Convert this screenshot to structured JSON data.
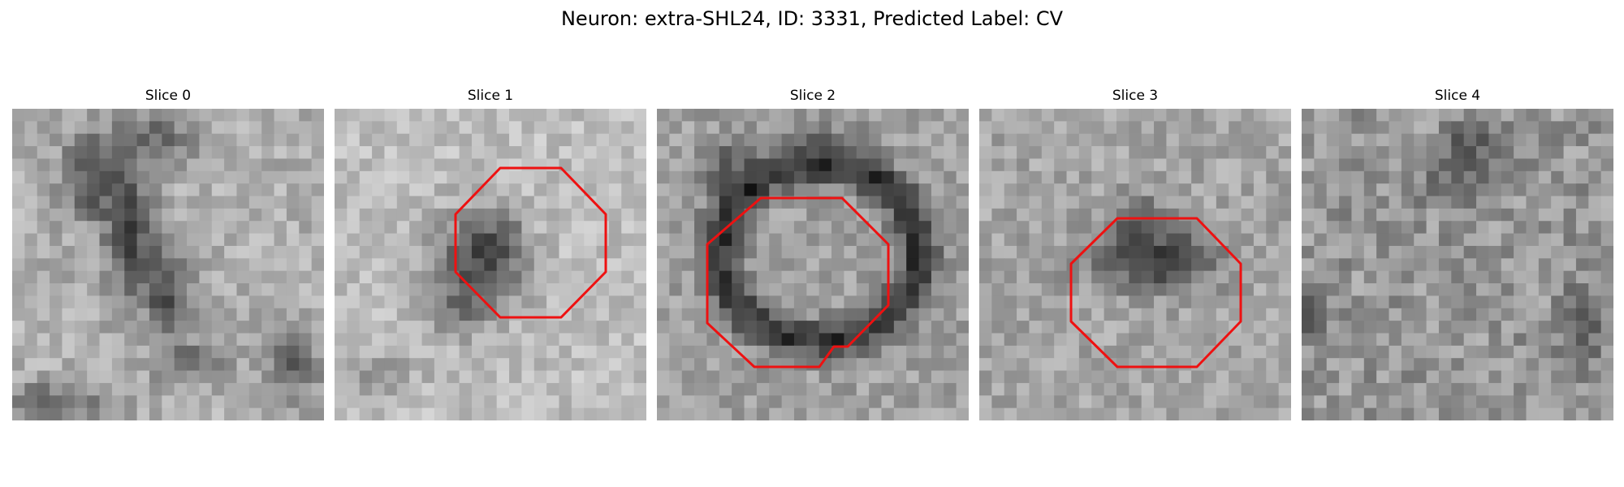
{
  "figure": {
    "title": "Neuron: extra-SHL24, ID: 3331, Predicted Label: CV",
    "outline_color": "#ee1111"
  },
  "panels": [
    {
      "label": "Slice 0",
      "has_outline": false
    },
    {
      "label": "Slice 1",
      "has_outline": true
    },
    {
      "label": "Slice 2",
      "has_outline": true
    },
    {
      "label": "Slice 3",
      "has_outline": true
    },
    {
      "label": "Slice 4",
      "has_outline": false
    }
  ]
}
